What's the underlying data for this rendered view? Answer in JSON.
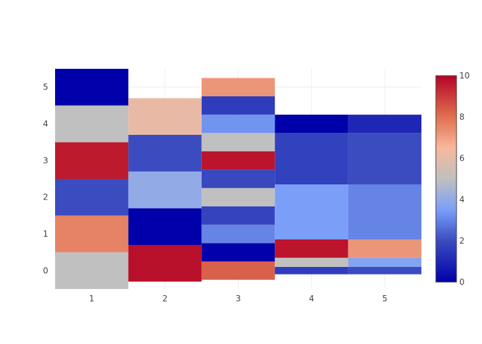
{
  "chart_data": {
    "type": "heatmap",
    "title": "",
    "xlabel": "",
    "ylabel": "",
    "x_ticks": [
      "1",
      "2",
      "3",
      "4",
      "5"
    ],
    "y_ticks": [
      "0",
      "1",
      "2",
      "3",
      "4",
      "5"
    ],
    "xlim": [
      0.5,
      5.5
    ],
    "ylim": [
      -0.5,
      5.5
    ],
    "colorscale": {
      "range": [
        0,
        10
      ],
      "ticks": [
        "0",
        "2",
        "4",
        "6",
        "8",
        "10"
      ],
      "stops": [
        [
          0,
          "#0000aa"
        ],
        [
          0.2,
          "#3b4cc0"
        ],
        [
          0.35,
          "#7b9ff9"
        ],
        [
          0.5,
          "#c0c0c0"
        ],
        [
          0.65,
          "#f7b89c"
        ],
        [
          0.8,
          "#e07050"
        ],
        [
          1,
          "#b40426"
        ]
      ]
    },
    "columns": [
      {
        "x": 1,
        "y_edges": [
          -0.5,
          0.5,
          1.5,
          2.5,
          3.5,
          4.5,
          5.5
        ],
        "z": [
          5,
          7.6,
          2,
          9.6,
          5,
          0
        ]
      },
      {
        "x": 2,
        "y_edges": [
          -0.3,
          0.7,
          1.7,
          2.7,
          3.7,
          4.7
        ],
        "z": [
          9.8,
          0,
          4,
          2,
          6.1
        ]
      },
      {
        "x": 3,
        "y_edges": [
          -0.25,
          0.25,
          0.75,
          1.25,
          1.75,
          2.25,
          2.75,
          3.25,
          3.75,
          4.25,
          4.75,
          5.25
        ],
        "z": [
          8.3,
          0,
          3,
          1.8,
          5,
          1.9,
          9.7,
          5,
          3.3,
          1.6,
          7.2
        ]
      },
      {
        "x": 4,
        "y_edges": [
          -0.1,
          0.1,
          0.35,
          0.85,
          2.35,
          3.75,
          4.25
        ],
        "z": [
          1.6,
          5,
          9.7,
          3.5,
          1.7,
          0
        ]
      },
      {
        "x": 5,
        "y_edges": [
          -0.1,
          0.1,
          0.35,
          0.85,
          2.35,
          3.75,
          4.25
        ],
        "z": [
          2,
          3.7,
          7.2,
          3,
          2,
          1
        ]
      }
    ],
    "grid": true
  }
}
